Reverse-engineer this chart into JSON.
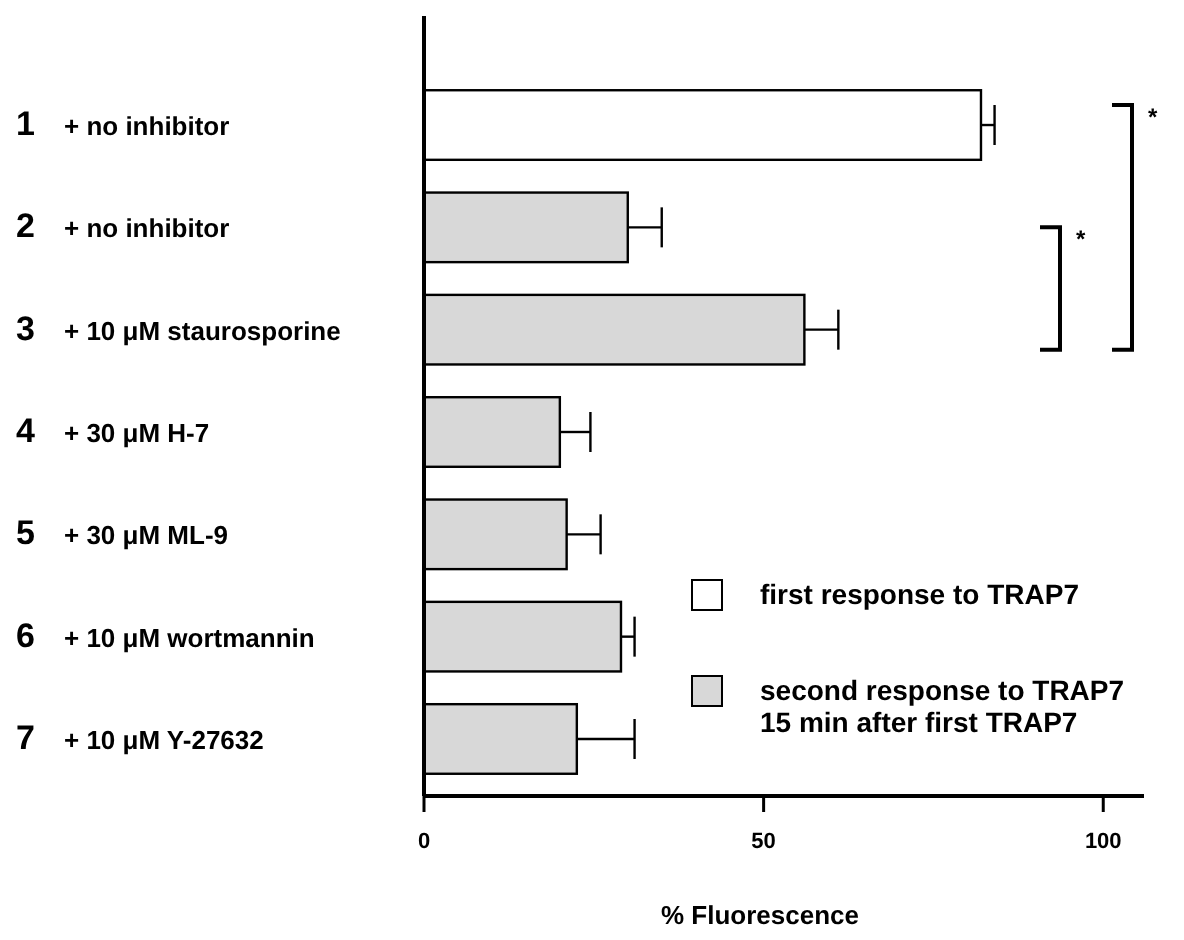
{
  "chart_data": {
    "type": "bar",
    "orientation": "horizontal",
    "xlabel": "% Fluorescence",
    "categories": [
      "1 + no inhibitor",
      "2 + no inhibitor",
      "3 + 10 μM staurosporine",
      "4 + 30 μM H-7",
      "5 + 30 μM ML-9",
      "6 + 10 μM wortmannin",
      "7 + 10 μM Y-27632"
    ],
    "series": [
      {
        "name": "first response to TRAP7",
        "color": "#ffffff",
        "values": [
          82,
          null,
          null,
          null,
          null,
          null,
          null
        ],
        "errors": [
          2,
          null,
          null,
          null,
          null,
          null,
          null
        ]
      },
      {
        "name": "second response to TRAP7\n15 min after first TRAP7",
        "color": "#d8d8d8",
        "values": [
          null,
          30,
          56,
          20,
          21,
          29,
          22.5
        ],
        "errors": [
          null,
          5,
          5,
          4.5,
          5,
          2,
          8.5
        ]
      }
    ],
    "xlim": [
      0,
      106
    ],
    "xticks": [
      0,
      50,
      100
    ],
    "grid": false,
    "legend": "bottom right",
    "annotations": [
      "*",
      "*"
    ]
  }
}
